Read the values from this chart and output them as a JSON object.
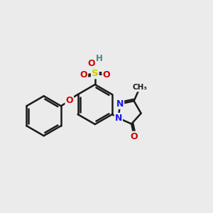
{
  "background_color": "#ebebeb",
  "atom_colors": {
    "C": "#1a1a1a",
    "H": "#4a8888",
    "N": "#1a1aee",
    "O": "#cc0000",
    "S": "#cccc00"
  },
  "bond_color": "#1a1a1a",
  "bond_width": 1.8,
  "figsize": [
    3.0,
    3.0
  ],
  "dpi": 100,
  "xlim": [
    0,
    10
  ],
  "ylim": [
    0,
    10
  ]
}
